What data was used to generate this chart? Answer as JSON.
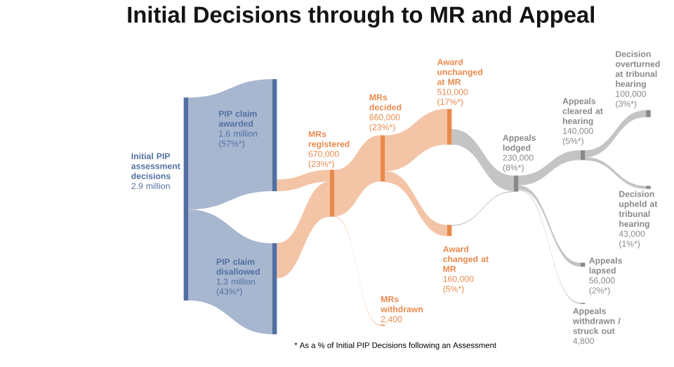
{
  "chart_data": {
    "type": "other",
    "title": "Initial Decisions through to MR and Appeal",
    "categories": [
      "Initial PIP assessment decisions",
      "PIP claim awarded",
      "PIP claim disallowed",
      "MRs registered",
      "MRs withdrawn",
      "MRs decided",
      "Award unchanged at MR",
      "Award changed at MR",
      "Appeals lodged",
      "Appeals cleared at hearing",
      "Appeals lapsed",
      "Appeals withdrawn / struck out",
      "Decision overturned at tribunal hearing",
      "Decision upheld at tribunal hearing"
    ],
    "values": [
      2900000,
      1600000,
      1300000,
      670000,
      2400,
      660000,
      510000,
      160000,
      230000,
      140000,
      56000,
      4800,
      100000,
      43000
    ],
    "value_labels": [
      "2.9 million",
      "1.6 million",
      "1.3 million",
      "670,000",
      "2,400",
      "660,000",
      "510,000",
      "160,000",
      "230,000",
      "140,000",
      "56,000",
      "4,800",
      "100,000",
      "43,000"
    ],
    "colors": [
      "#a8b7d0",
      "#a8b7d0",
      "#a8b7d0",
      "#f4c4a6",
      "#f4c4a6",
      "#f4c4a6",
      "#f4c4a6",
      "#f4c4a6",
      "#c4c4c4",
      "#c4c4c4",
      "#c4c4c4",
      "#c4c4c4",
      "#c4c4c4",
      "#c4c4c4"
    ],
    "annotations": [
      {
        "text": "(57%*)",
        "x": "PIP claim awarded"
      },
      {
        "text": "(43%*)",
        "x": "PIP claim disallowed"
      },
      {
        "text": "(23%*)",
        "x": "MRs registered"
      },
      {
        "text": "(23%*)",
        "x": "MRs decided"
      },
      {
        "text": "(17%*)",
        "x": "Award unchanged at MR"
      },
      {
        "text": "(5%*)",
        "x": "Award changed at MR"
      },
      {
        "text": "(8%*)",
        "x": "Appeals lodged"
      },
      {
        "text": "(5%*)",
        "x": "Appeals cleared at hearing"
      },
      {
        "text": "(2%*)",
        "x": "Appeals lapsed"
      },
      {
        "text": "(3%*)",
        "x": "Decision overturned at tribunal hearing"
      },
      {
        "text": "(1%*)",
        "x": "Decision upheld at tribunal hearing"
      },
      "* As a % of Initial PIP Decisions following an Assessment"
    ]
  }
}
